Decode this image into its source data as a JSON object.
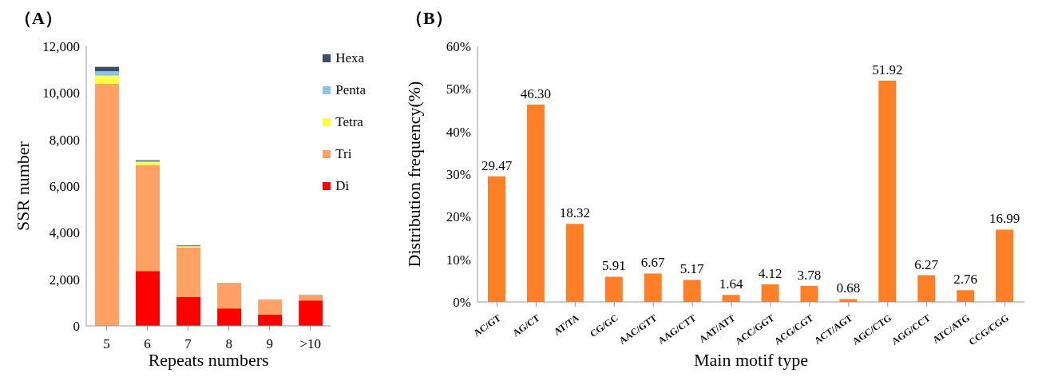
{
  "chart_data": [
    {
      "type": "bar",
      "title": "（A）",
      "xlabel": "Repeats numbers",
      "ylabel": "SSR number",
      "categories": [
        "5",
        "6",
        "7",
        "8",
        "9",
        ">10"
      ],
      "stacked": true,
      "series": [
        {
          "name": "Di",
          "color": "#ff0000",
          "values": [
            0,
            2360,
            1235,
            750,
            490,
            1090
          ]
        },
        {
          "name": "Tri",
          "color": "#ffa064",
          "values": [
            10390,
            4550,
            2130,
            1070,
            620,
            220
          ]
        },
        {
          "name": "Tetra",
          "color": "#ffff40",
          "values": [
            350,
            120,
            45,
            10,
            10,
            10
          ]
        },
        {
          "name": "Penta",
          "color": "#8cc4e8",
          "values": [
            190,
            50,
            30,
            10,
            10,
            10
          ]
        },
        {
          "name": "Hexa",
          "color": "#3b4e66",
          "values": [
            190,
            35,
            25,
            10,
            10,
            10
          ]
        }
      ],
      "ylim": [
        0,
        12000
      ],
      "yticks": [
        {
          "value": 0,
          "label": "0"
        },
        {
          "value": 2000,
          "label": "2,000"
        },
        {
          "value": 4000,
          "label": "4,000"
        },
        {
          "value": 6000,
          "label": "6,000"
        },
        {
          "value": 8000,
          "label": "8,000"
        },
        {
          "value": 10000,
          "label": "10,000"
        },
        {
          "value": 12000,
          "label": "12,000"
        }
      ],
      "legend": "top right"
    },
    {
      "type": "bar",
      "title": "（B）",
      "xlabel": "Main motif type",
      "ylabel": "Distribution frequency(%)",
      "categories": [
        "AC/GT",
        "AG/CT",
        "AT/TA",
        "CG/GC",
        "AAC/GTT",
        "AAG/CTT",
        "AAT/ATT",
        "ACC/GGT",
        "ACG/CGT",
        "ACT/AGT",
        "AGC/CTG",
        "AGG/CCT",
        "ATC/ATG",
        "CCG/CGG"
      ],
      "color": "#ff7f27",
      "values": [
        29.47,
        46.3,
        18.32,
        5.91,
        6.67,
        5.17,
        1.64,
        4.12,
        3.78,
        0.68,
        51.92,
        6.27,
        2.76,
        16.99
      ],
      "value_labels": [
        "29.47",
        "46.30",
        "18.32",
        "5.91",
        "6.67",
        "5.17",
        "1.64",
        "4.12",
        "3.78",
        "0.68",
        "51.92",
        "6.27",
        "2.76",
        "16.99"
      ],
      "ylim": [
        0,
        60
      ],
      "yticks": [
        {
          "value": 0,
          "label": "0%"
        },
        {
          "value": 10,
          "label": "10%"
        },
        {
          "value": 20,
          "label": "20%"
        },
        {
          "value": 30,
          "label": "30%"
        },
        {
          "value": 40,
          "label": "40%"
        },
        {
          "value": 50,
          "label": "50%"
        },
        {
          "value": 60,
          "label": "60%"
        }
      ]
    }
  ]
}
